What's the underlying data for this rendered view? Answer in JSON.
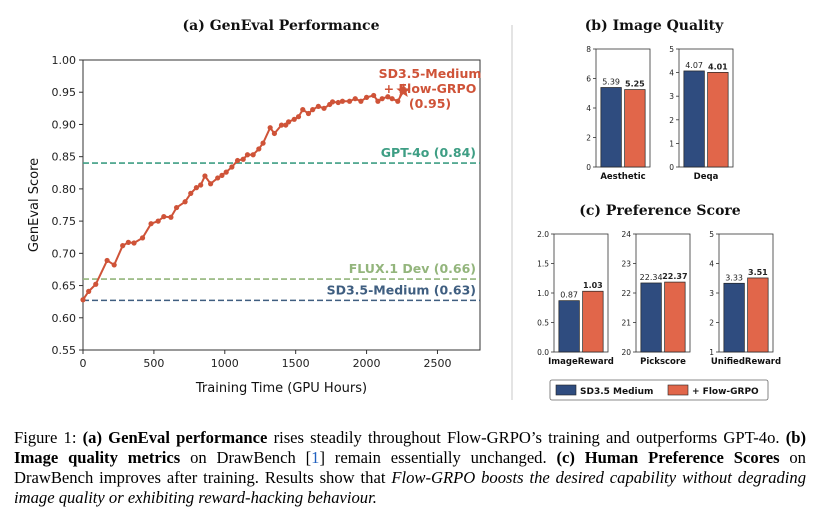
{
  "figure": {
    "panel_a_title": "(a) GenEval Performance",
    "panel_b_title": "(b) Image Quality",
    "panel_c_title": "(c) Preference Score",
    "legend": {
      "sd": "SD3.5 Medium",
      "flow": "+ Flow-GRPO"
    },
    "colors": {
      "line": "#cf5338",
      "gpt": "#3e9e84",
      "flux": "#93b57c",
      "sd": "#3f5e80",
      "bar_sd": "#2f4c7f",
      "bar_flow": "#e1664a"
    }
  },
  "chart_data": [
    {
      "type": "line",
      "title": "(a) GenEval Performance",
      "xlabel": "Training Time (GPU Hours)",
      "ylabel": "GenEval Score",
      "xlim": [
        0,
        2800
      ],
      "ylim": [
        0.55,
        1.0
      ],
      "xticks": [
        "0",
        "500",
        "1000",
        "1500",
        "2000",
        "2500"
      ],
      "yticks": [
        "0.55",
        "0.60",
        "0.65",
        "0.70",
        "0.75",
        "0.80",
        "0.85",
        "0.90",
        "0.95",
        "1.00"
      ],
      "x": [
        0,
        40,
        90,
        170,
        220,
        280,
        320,
        360,
        420,
        480,
        530,
        570,
        620,
        660,
        720,
        760,
        800,
        830,
        860,
        900,
        950,
        980,
        1010,
        1050,
        1090,
        1130,
        1160,
        1200,
        1240,
        1270,
        1320,
        1350,
        1400,
        1430,
        1450,
        1490,
        1520,
        1550,
        1590,
        1620,
        1660,
        1700,
        1740,
        1760,
        1800,
        1830,
        1880,
        1920,
        1960,
        2000,
        2050,
        2080,
        2110,
        2150,
        2180,
        2220
      ],
      "values": [
        0.628,
        0.641,
        0.652,
        0.689,
        0.682,
        0.712,
        0.717,
        0.716,
        0.724,
        0.746,
        0.75,
        0.757,
        0.756,
        0.771,
        0.78,
        0.793,
        0.802,
        0.806,
        0.82,
        0.808,
        0.817,
        0.821,
        0.826,
        0.834,
        0.844,
        0.846,
        0.853,
        0.853,
        0.862,
        0.871,
        0.895,
        0.886,
        0.899,
        0.899,
        0.904,
        0.908,
        0.912,
        0.923,
        0.917,
        0.923,
        0.928,
        0.925,
        0.931,
        0.935,
        0.934,
        0.936,
        0.936,
        0.94,
        0.936,
        0.942,
        0.945,
        0.936,
        0.94,
        0.943,
        0.94,
        0.936
      ],
      "series_name": "SD3.5-Medium + Flow-GRPO",
      "final_point": {
        "x": 2260,
        "y": 0.952
      },
      "final_label": [
        "SD3.5-Medium",
        "+ Flow-GRPO",
        "(0.95)"
      ],
      "reference_lines": [
        {
          "label": "GPT-4o (0.84)",
          "value": 0.84
        },
        {
          "label": "FLUX.1 Dev (0.66)",
          "value": 0.66
        },
        {
          "label": "SD3.5-Medium (0.63)",
          "value": 0.627
        }
      ]
    },
    {
      "type": "bar",
      "group": "(b) Image Quality",
      "category": "Aesthetic",
      "ylim": [
        0,
        8
      ],
      "yticks": [
        "0",
        "2",
        "4",
        "6",
        "8"
      ],
      "series": [
        {
          "name": "SD3.5 Medium",
          "value": 5.39,
          "label": "5.39"
        },
        {
          "name": "+ Flow-GRPO",
          "value": 5.25,
          "label": "5.25"
        }
      ]
    },
    {
      "type": "bar",
      "group": "(b) Image Quality",
      "category": "Deqa",
      "ylim": [
        0,
        5
      ],
      "yticks": [
        "0",
        "1",
        "2",
        "3",
        "4",
        "5"
      ],
      "series": [
        {
          "name": "SD3.5 Medium",
          "value": 4.07,
          "label": "4.07"
        },
        {
          "name": "+ Flow-GRPO",
          "value": 4.01,
          "label": "4.01"
        }
      ]
    },
    {
      "type": "bar",
      "group": "(c) Preference Score",
      "category": "ImageReward",
      "ylim": [
        0,
        2
      ],
      "yticks": [
        "0.0",
        "0.5",
        "1.0",
        "1.5",
        "2.0"
      ],
      "series": [
        {
          "name": "SD3.5 Medium",
          "value": 0.87,
          "label": "0.87"
        },
        {
          "name": "+ Flow-GRPO",
          "value": 1.03,
          "label": "1.03"
        }
      ]
    },
    {
      "type": "bar",
      "group": "(c) Preference Score",
      "category": "Pickscore",
      "ylim": [
        20,
        24
      ],
      "yticks": [
        "20",
        "21",
        "22",
        "23",
        "24"
      ],
      "series": [
        {
          "name": "SD3.5 Medium",
          "value": 22.34,
          "label": "22.34"
        },
        {
          "name": "+ Flow-GRPO",
          "value": 22.37,
          "label": "22.37"
        }
      ]
    },
    {
      "type": "bar",
      "group": "(c) Preference Score",
      "category": "UnifiedReward",
      "ylim": [
        1,
        5
      ],
      "yticks": [
        "1",
        "2",
        "3",
        "4",
        "5"
      ],
      "series": [
        {
          "name": "SD3.5 Medium",
          "value": 3.33,
          "label": "3.33"
        },
        {
          "name": "+ Flow-GRPO",
          "value": 3.51,
          "label": "3.51"
        }
      ]
    }
  ],
  "caption": {
    "label": "Figure 1: ",
    "a_tag": "(a) ",
    "a_bold": "GenEval performance",
    "a_text": " rises steadily throughout Flow-GRPO’s training and outperforms GPT-4o. ",
    "b_tag": "(b) ",
    "b_bold": "Image quality metrics",
    "b_text1": " on DrawBench [",
    "b_ref": "1",
    "b_text2": "] remain essentially unchanged. ",
    "c_tag": "(c) ",
    "c_bold": "Human Preference Scores",
    "c_text": " on DrawBench improves after training. Results show that ",
    "c_italic": "Flow-GRPO boosts the desired capability without degrading image quality or exhibiting reward-hacking behaviour."
  }
}
